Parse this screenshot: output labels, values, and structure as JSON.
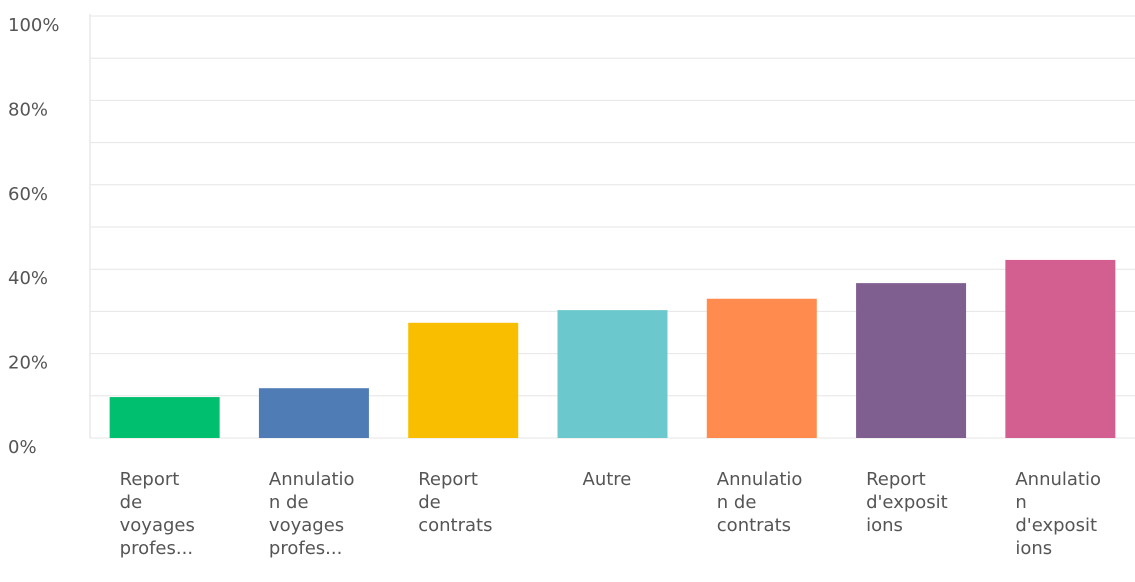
{
  "chart_data": {
    "type": "bar",
    "categories": [
      "Report de voyages profes...",
      "Annulation de voyages profes...",
      "Report de contrats",
      "Autre",
      "Annulation de contrats",
      "Report d'expositions",
      "Annulation d'expositions"
    ],
    "values": [
      9.7,
      11.8,
      27.3,
      30.3,
      33,
      36.7,
      42.2
    ],
    "colors": [
      "#00bf6f",
      "#507cb6",
      "#f9be00",
      "#6bc8cd",
      "#ff8b4f",
      "#7f5f90",
      "#d25f90"
    ],
    "ylim": [
      0,
      100
    ],
    "yticks": [
      {
        "value": 0,
        "label": "0%"
      },
      {
        "value": 20,
        "label": "20%"
      },
      {
        "value": 40,
        "label": "40%"
      },
      {
        "value": 60,
        "label": "60%"
      },
      {
        "value": 80,
        "label": "80%"
      },
      {
        "value": 100,
        "label": "100%"
      }
    ],
    "minor_yticks": [
      10,
      30,
      50,
      70,
      90
    ],
    "grid": true
  }
}
